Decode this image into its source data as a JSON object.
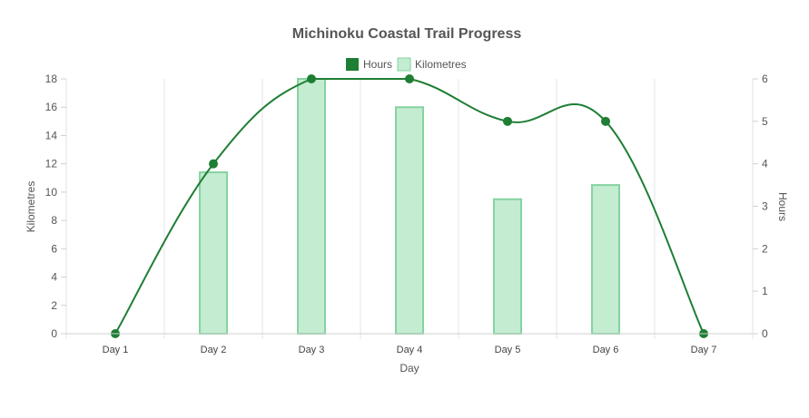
{
  "chart_data": {
    "type": "bar",
    "title": "Michinoku Coastal Trail Progress",
    "xlabel": "Day",
    "ylabel_left": "Kilometres",
    "ylabel_right": "Hours",
    "categories": [
      "Day 1",
      "Day 2",
      "Day 3",
      "Day 4",
      "Day 5",
      "Day 6",
      "Day 7"
    ],
    "ylim_left": [
      0,
      18
    ],
    "ylim_right": [
      0,
      6
    ],
    "yticks_left": [
      "0",
      "2",
      "4",
      "6",
      "8",
      "10",
      "12",
      "14",
      "16",
      "18"
    ],
    "yticks_right": [
      "0",
      "1",
      "2",
      "3",
      "4",
      "5",
      "6"
    ],
    "legend_position": "top-center",
    "grid": "vertical",
    "series": [
      {
        "name": "Hours",
        "type": "line",
        "axis": "right",
        "color": "#1e7e34",
        "values": [
          0,
          4,
          6,
          6,
          5,
          5,
          0
        ]
      },
      {
        "name": "Kilometres",
        "type": "bar",
        "axis": "left",
        "color": "#c3ecd1",
        "border_color": "#86d3a1",
        "values": [
          0,
          11.4,
          18,
          16,
          9.5,
          10.5,
          0
        ]
      }
    ]
  }
}
